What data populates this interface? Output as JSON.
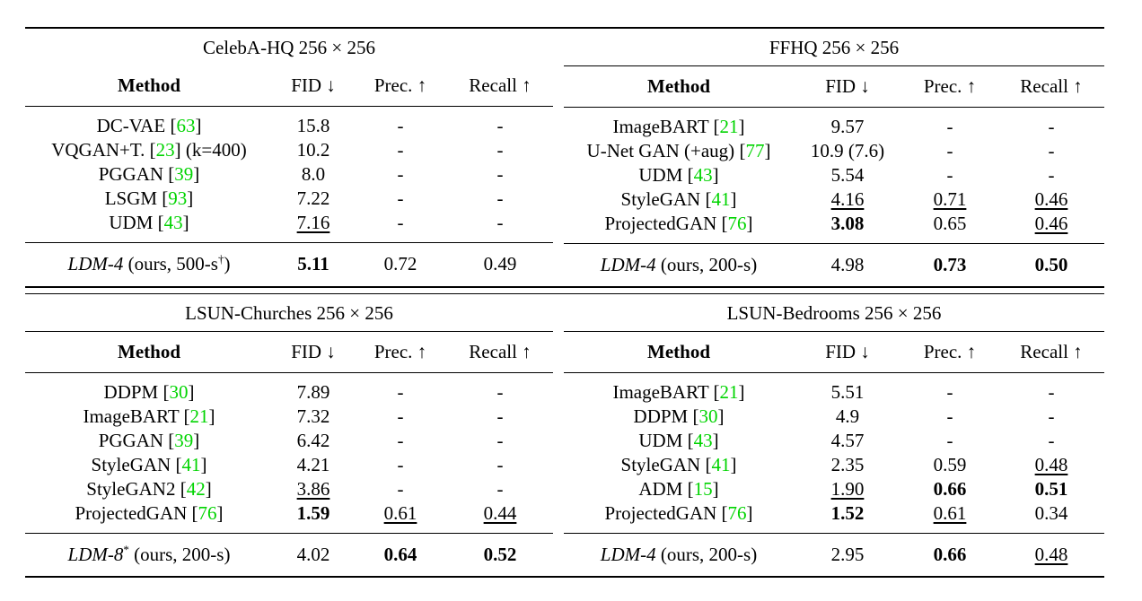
{
  "headers": {
    "method": "Method",
    "fid": "FID ↓",
    "prec": "Prec. ↑",
    "recall": "Recall ↑"
  },
  "tables": {
    "celeba": {
      "title": "CelebA-HQ 256 × 256",
      "rows": [
        {
          "name": "DC-VAE ",
          "cite": "63",
          "suffix": "",
          "fid": "15.8",
          "prec": "-",
          "recall": "-"
        },
        {
          "name": "VQGAN+T. ",
          "cite": "23",
          "suffix": " (k=400)",
          "fid": "10.2",
          "prec": "-",
          "recall": "-"
        },
        {
          "name": "PGGAN ",
          "cite": "39",
          "suffix": "",
          "fid": "8.0",
          "prec": "-",
          "recall": "-"
        },
        {
          "name": "LSGM ",
          "cite": "93",
          "suffix": "",
          "fid": "7.22",
          "prec": "-",
          "recall": "-"
        },
        {
          "name": "UDM ",
          "cite": "43",
          "suffix": "",
          "fid": "7.16",
          "prec": "-",
          "recall": "-"
        }
      ],
      "ours": {
        "model": "LDM-4",
        "detail": " (ours, 500-s",
        "mark": "†",
        "close": ")",
        "fid": "5.11",
        "prec": "0.72",
        "recall": "0.49"
      }
    },
    "ffhq": {
      "title": "FFHQ 256 × 256",
      "rows": [
        {
          "name": "ImageBART ",
          "cite": "21",
          "suffix": "",
          "fid": "9.57",
          "prec": "-",
          "recall": "-"
        },
        {
          "name": "U-Net GAN (+aug) ",
          "cite": "77",
          "suffix": "",
          "fid": "10.9 (7.6)",
          "prec": "-",
          "recall": "-"
        },
        {
          "name": "UDM ",
          "cite": "43",
          "suffix": "",
          "fid": "5.54",
          "prec": "-",
          "recall": "-"
        },
        {
          "name": "StyleGAN ",
          "cite": "41",
          "suffix": "",
          "fid": "4.16",
          "prec": "0.71",
          "recall": "0.46"
        },
        {
          "name": "ProjectedGAN ",
          "cite": "76",
          "suffix": "",
          "fid": "3.08",
          "prec": "0.65",
          "recall": "0.46"
        }
      ],
      "ours": {
        "model": "LDM-4",
        "detail": " (ours, 200-s)",
        "mark": "",
        "close": "",
        "fid": "4.98",
        "prec": "0.73",
        "recall": "0.50"
      }
    },
    "churches": {
      "title": "LSUN-Churches 256 × 256",
      "rows": [
        {
          "name": "DDPM ",
          "cite": "30",
          "suffix": "",
          "fid": "7.89",
          "prec": "-",
          "recall": "-"
        },
        {
          "name": "ImageBART ",
          "cite": "21",
          "suffix": "",
          "fid": "7.32",
          "prec": "-",
          "recall": "-"
        },
        {
          "name": "PGGAN ",
          "cite": "39",
          "suffix": "",
          "fid": "6.42",
          "prec": "-",
          "recall": "-"
        },
        {
          "name": "StyleGAN ",
          "cite": "41",
          "suffix": "",
          "fid": "4.21",
          "prec": "-",
          "recall": "-"
        },
        {
          "name": "StyleGAN2 ",
          "cite": "42",
          "suffix": "",
          "fid": "3.86",
          "prec": "-",
          "recall": "-"
        },
        {
          "name": "ProjectedGAN ",
          "cite": "76",
          "suffix": "",
          "fid": "1.59",
          "prec": "0.61",
          "recall": "0.44"
        }
      ],
      "ours": {
        "model": "LDM-8",
        "detail": " (ours, 200-s)",
        "mark": "*",
        "close": "",
        "fid": "4.02",
        "prec": "0.64",
        "recall": "0.52"
      }
    },
    "bedrooms": {
      "title": "LSUN-Bedrooms 256 × 256",
      "rows": [
        {
          "name": "ImageBART ",
          "cite": "21",
          "suffix": "",
          "fid": "5.51",
          "prec": "-",
          "recall": "-"
        },
        {
          "name": "DDPM ",
          "cite": "30",
          "suffix": "",
          "fid": "4.9",
          "prec": "-",
          "recall": "-"
        },
        {
          "name": "UDM ",
          "cite": "43",
          "suffix": "",
          "fid": "4.57",
          "prec": "-",
          "recall": "-"
        },
        {
          "name": "StyleGAN ",
          "cite": "41",
          "suffix": "",
          "fid": "2.35",
          "prec": "0.59",
          "recall": "0.48"
        },
        {
          "name": "ADM ",
          "cite": "15",
          "suffix": "",
          "fid": "1.90",
          "prec": "0.66",
          "recall": "0.51"
        },
        {
          "name": "ProjectedGAN ",
          "cite": "76",
          "suffix": "",
          "fid": "1.52",
          "prec": "0.61",
          "recall": "0.34"
        }
      ],
      "ours": {
        "model": "LDM-4",
        "detail": " (ours, 200-s)",
        "mark": "",
        "close": "",
        "fid": "2.95",
        "prec": "0.66",
        "recall": "0.48"
      }
    }
  },
  "link_color": "#00d400"
}
